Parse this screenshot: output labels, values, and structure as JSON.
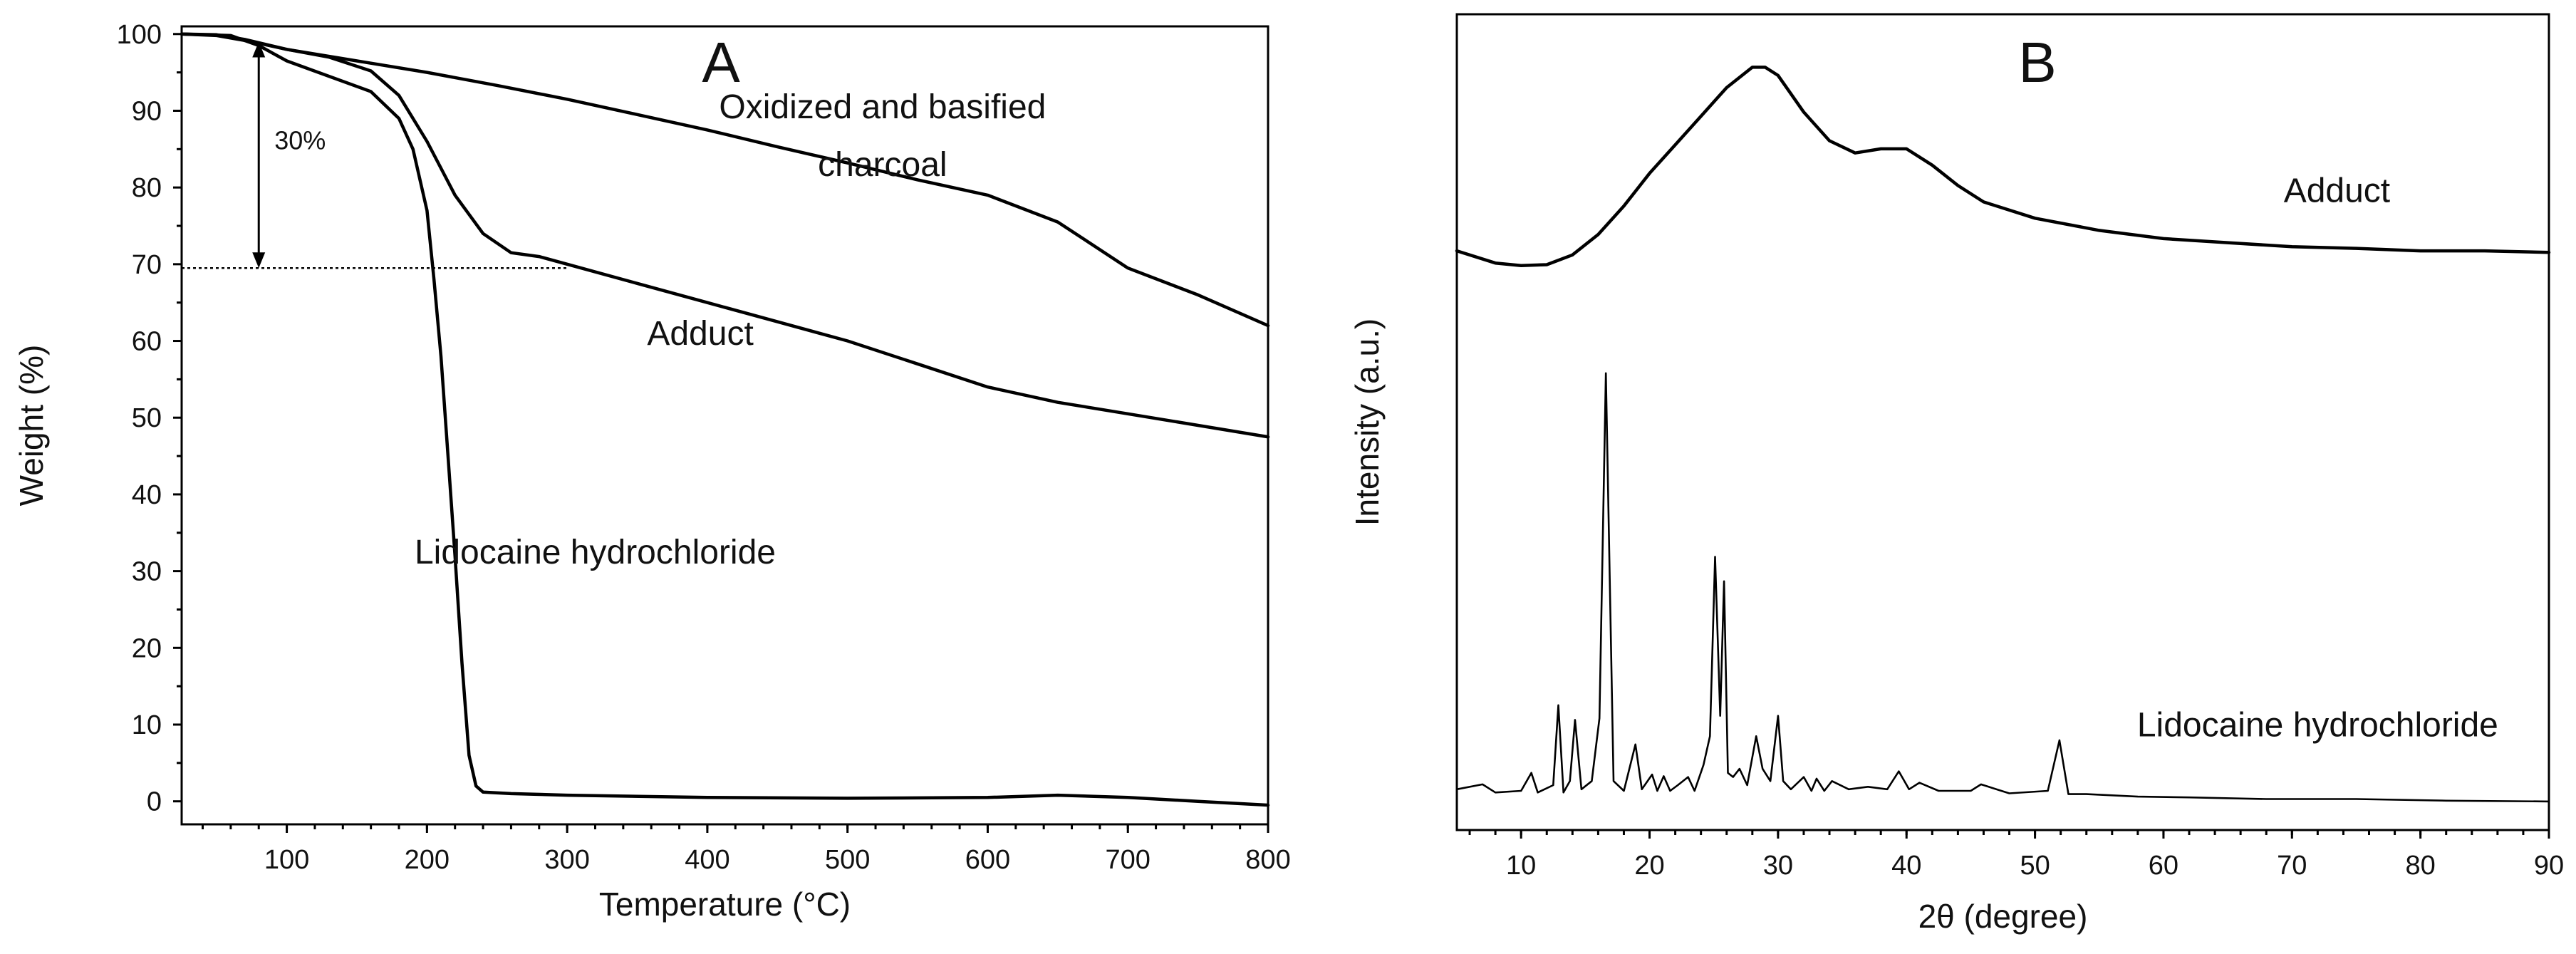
{
  "chart_data": [
    {
      "type": "line",
      "panel_label": "A",
      "xlabel": "Temperature (°C)",
      "ylabel": "Weight (%)",
      "xlim": [
        25,
        800
      ],
      "ylim": [
        -3,
        101
      ],
      "xticks": [
        100,
        200,
        300,
        400,
        500,
        600,
        700,
        800
      ],
      "yticks": [
        0,
        10,
        20,
        30,
        40,
        50,
        60,
        70,
        80,
        90,
        100
      ],
      "series": [
        {
          "name": "Oxidized and basified charcoal",
          "x": [
            25,
            50,
            75,
            100,
            150,
            200,
            250,
            300,
            350,
            400,
            450,
            500,
            550,
            600,
            650,
            700,
            750,
            800
          ],
          "y": [
            100,
            99.8,
            99,
            98,
            96.5,
            95,
            93.3,
            91.5,
            89.5,
            87.5,
            85.3,
            83.2,
            81,
            79,
            75.5,
            69.5,
            66,
            62
          ]
        },
        {
          "name": "Adduct",
          "x": [
            25,
            50,
            70,
            100,
            130,
            160,
            180,
            200,
            220,
            240,
            260,
            280,
            300,
            350,
            400,
            450,
            500,
            550,
            600,
            650,
            700,
            750,
            800
          ],
          "y": [
            100,
            99.9,
            99.3,
            98,
            97,
            95.2,
            92,
            86,
            79,
            74,
            71.5,
            71,
            70,
            67.5,
            65,
            62.5,
            60,
            57,
            54,
            52,
            50.5,
            49,
            47.5
          ]
        },
        {
          "name": "Lidocaine hydrochloride",
          "x": [
            25,
            60,
            80,
            100,
            130,
            160,
            180,
            190,
            200,
            205,
            210,
            215,
            220,
            225,
            230,
            235,
            240,
            260,
            300,
            400,
            500,
            600,
            650,
            700,
            750,
            800
          ],
          "y": [
            100,
            99.8,
            98.5,
            96.5,
            94.5,
            92.5,
            89,
            85,
            77,
            68,
            58,
            45,
            32,
            18,
            6,
            2,
            1.2,
            1,
            0.8,
            0.5,
            0.4,
            0.5,
            0.8,
            0.5,
            0,
            -0.5
          ]
        }
      ],
      "annotations": [
        {
          "text": "30%",
          "x": 80,
          "y": 85
        },
        {
          "text": "Oxidized and basified",
          "x": 525,
          "y": 89
        },
        {
          "text": "charcoal",
          "x": 525,
          "y": 81.5
        },
        {
          "text": "Adduct",
          "x": 395,
          "y": 59.5
        },
        {
          "text": "Lidocaine hydrochloride",
          "x": 320,
          "y": 31
        }
      ],
      "reference_line": {
        "y": 69.5,
        "x_from": 25,
        "x_to": 300,
        "style": "dotted"
      },
      "arrow": {
        "x": 80,
        "y_from": 99,
        "y_to": 69.5
      }
    },
    {
      "type": "line",
      "panel_label": "B",
      "xlabel": "2θ (degree)",
      "ylabel": "Intensity (a.u.)",
      "xlim": [
        5,
        90
      ],
      "ylim": [
        0,
        100
      ],
      "xticks": [
        10,
        20,
        30,
        40,
        50,
        60,
        70,
        80,
        90
      ],
      "yticks": [],
      "series": [
        {
          "name": "Adduct",
          "x": [
            5,
            8,
            10,
            12,
            14,
            16,
            18,
            20,
            22,
            24,
            26,
            28,
            29,
            30,
            32,
            34,
            36,
            38,
            40,
            42,
            44,
            46,
            50,
            55,
            60,
            65,
            70,
            75,
            80,
            85,
            90
          ],
          "y": [
            71,
            69.5,
            69.2,
            69.3,
            70.5,
            73,
            76.5,
            80.5,
            84,
            87.5,
            91,
            93.5,
            93.5,
            92.5,
            88,
            84.5,
            83,
            83.5,
            83.5,
            81.5,
            79,
            77,
            75,
            73.5,
            72.5,
            72,
            71.5,
            71.3,
            71,
            71,
            70.8
          ]
        },
        {
          "name": "Lidocaine hydrochloride",
          "x": [
            5,
            7,
            8,
            10,
            10.8,
            11.3,
            12.5,
            12.9,
            13.3,
            13.8,
            14.2,
            14.7,
            15.5,
            16.1,
            16.6,
            17.2,
            18,
            18.9,
            19.4,
            20.2,
            20.6,
            21.1,
            21.6,
            22.2,
            23,
            23.5,
            24.2,
            24.7,
            25.1,
            25.5,
            25.8,
            26.1,
            26.5,
            27,
            27.6,
            28.3,
            28.8,
            29.4,
            30,
            30.4,
            31,
            32,
            32.6,
            33,
            33.6,
            34.2,
            35.5,
            37,
            38.5,
            39.4,
            40.2,
            41,
            42.5,
            45,
            45.8,
            48,
            51,
            51.9,
            52.6,
            54,
            58,
            62,
            68,
            75,
            82,
            90
          ],
          "y": [
            5,
            5.6,
            4.6,
            4.8,
            7,
            4.6,
            5.5,
            15.3,
            4.6,
            6,
            13.5,
            5,
            6,
            13.7,
            56,
            6,
            4.8,
            10.5,
            5,
            6.8,
            4.8,
            6.6,
            4.8,
            5.5,
            6.5,
            4.8,
            8,
            11.5,
            33.5,
            14,
            30.5,
            7,
            6.5,
            7.5,
            5.5,
            11.5,
            7.5,
            6,
            14,
            6,
            5,
            6.5,
            4.8,
            6.3,
            4.8,
            6,
            5,
            5.3,
            5,
            7.2,
            5,
            5.8,
            4.8,
            4.8,
            5.6,
            4.5,
            4.8,
            11,
            4.4,
            4.4,
            4.1,
            4,
            3.8,
            3.8,
            3.6,
            3.5
          ]
        }
      ],
      "annotations": [
        {
          "text": "Adduct",
          "x": 73.5,
          "y": 77
        },
        {
          "text": "Lidocaine hydrochloride",
          "x": 72,
          "y": 11.5
        }
      ]
    }
  ]
}
